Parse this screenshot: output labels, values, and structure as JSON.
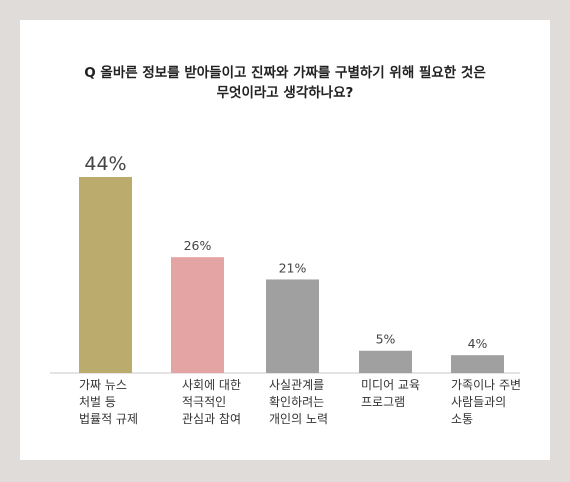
{
  "question": {
    "line1": "Q 올바른 정보를 받아들이고 진짜와 가짜를 구별하기 위해 필요한 것은",
    "line2": "무엇이라고 생각하나요?"
  },
  "chart_data": {
    "type": "bar",
    "categories": [
      [
        "가짜 뉴스",
        "처벌 등",
        "법률적 규제"
      ],
      [
        "사회에 대한",
        "적극적인",
        "관심과 참여"
      ],
      [
        "사실관계를",
        "확인하려는",
        "개인의 노력"
      ],
      [
        "미디어 교육",
        "프로그램"
      ],
      [
        "가족이나 주변",
        "사람들과의",
        "소통"
      ]
    ],
    "values": [
      44,
      26,
      21,
      5,
      4
    ],
    "value_labels": [
      "44%",
      "26%",
      "21%",
      "5%",
      "4%"
    ],
    "colors": [
      "#bbab6c",
      "#e5a4a4",
      "#a0a0a0",
      "#a0a0a0",
      "#a0a0a0"
    ],
    "axis_color": "#c8c8c8",
    "ylim": [
      0,
      44
    ],
    "grid": false,
    "legend": "none"
  }
}
